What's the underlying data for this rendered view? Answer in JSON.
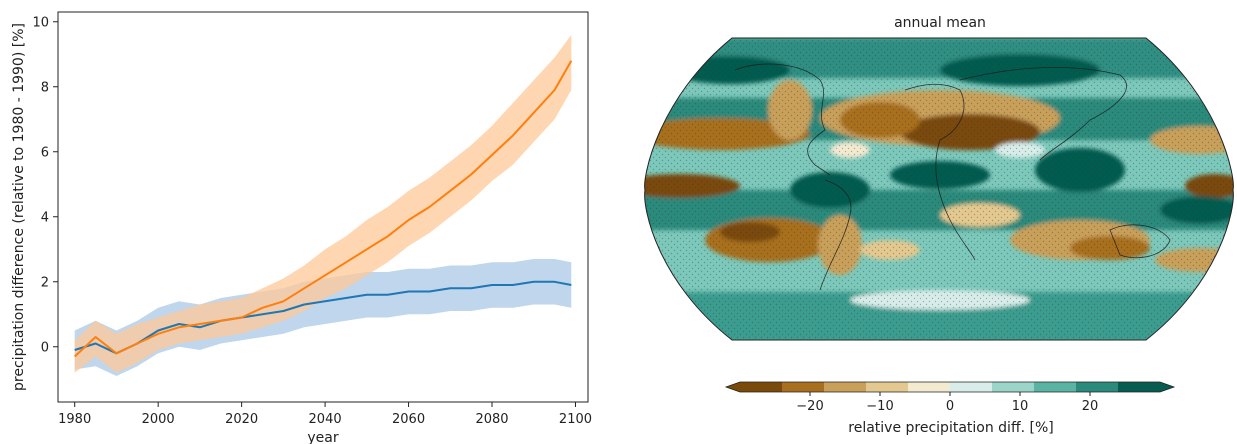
{
  "chart_data": [
    {
      "type": "line",
      "title": "",
      "xlabel": "year",
      "ylabel": "precipitation difference (relative to 1980 - 1990) [%]",
      "xlim": [
        1976,
        2103
      ],
      "ylim": [
        -1.7,
        10.3
      ],
      "xticks": [
        1980,
        2000,
        2020,
        2040,
        2060,
        2080,
        2100
      ],
      "yticks": [
        0,
        2,
        4,
        6,
        8,
        10
      ],
      "grid": false,
      "legend": "none",
      "series": [
        {
          "color": "#1f77b4",
          "band_color": "#a9c8e6",
          "x": [
            1980,
            1985,
            1990,
            1995,
            2000,
            2005,
            2010,
            2015,
            2020,
            2025,
            2030,
            2035,
            2040,
            2045,
            2050,
            2055,
            2060,
            2065,
            2070,
            2075,
            2080,
            2085,
            2090,
            2095,
            2099
          ],
          "values": [
            -0.1,
            0.1,
            -0.2,
            0.1,
            0.5,
            0.7,
            0.6,
            0.8,
            0.9,
            1.0,
            1.1,
            1.3,
            1.4,
            1.5,
            1.6,
            1.6,
            1.7,
            1.7,
            1.8,
            1.8,
            1.9,
            1.9,
            2.0,
            2.0,
            1.9
          ],
          "lower": [
            -0.7,
            -0.6,
            -0.9,
            -0.6,
            -0.2,
            0.0,
            -0.1,
            0.1,
            0.2,
            0.3,
            0.4,
            0.6,
            0.7,
            0.8,
            0.9,
            0.9,
            1.0,
            1.0,
            1.1,
            1.1,
            1.2,
            1.2,
            1.3,
            1.3,
            1.2
          ],
          "upper": [
            0.5,
            0.8,
            0.5,
            0.8,
            1.2,
            1.4,
            1.3,
            1.5,
            1.6,
            1.7,
            1.8,
            2.0,
            2.1,
            2.2,
            2.3,
            2.3,
            2.4,
            2.4,
            2.5,
            2.5,
            2.6,
            2.6,
            2.7,
            2.7,
            2.6
          ]
        },
        {
          "color": "#ff7f0e",
          "band_color": "#fdc898",
          "x": [
            1980,
            1985,
            1990,
            1995,
            2000,
            2005,
            2010,
            2015,
            2020,
            2025,
            2030,
            2035,
            2040,
            2045,
            2050,
            2055,
            2060,
            2065,
            2070,
            2075,
            2080,
            2085,
            2090,
            2095,
            2099
          ],
          "values": [
            -0.3,
            0.3,
            -0.2,
            0.1,
            0.4,
            0.6,
            0.7,
            0.8,
            0.9,
            1.2,
            1.4,
            1.8,
            2.2,
            2.6,
            3.0,
            3.4,
            3.9,
            4.3,
            4.8,
            5.3,
            5.9,
            6.5,
            7.2,
            7.9,
            8.8
          ],
          "lower": [
            -0.8,
            -0.3,
            -0.8,
            -0.5,
            -0.1,
            0.1,
            0.2,
            0.3,
            0.4,
            0.6,
            0.8,
            1.1,
            1.5,
            1.8,
            2.2,
            2.6,
            3.1,
            3.5,
            4.0,
            4.5,
            5.1,
            5.6,
            6.3,
            7.0,
            7.9
          ],
          "upper": [
            0.2,
            0.8,
            0.4,
            0.7,
            0.9,
            1.1,
            1.3,
            1.4,
            1.5,
            1.8,
            2.1,
            2.5,
            3.0,
            3.4,
            3.9,
            4.3,
            4.8,
            5.2,
            5.7,
            6.2,
            6.8,
            7.5,
            8.2,
            8.9,
            9.6
          ]
        }
      ]
    },
    {
      "type": "heatmap",
      "title": "annual mean",
      "colorbar": {
        "label": "relative precipitation diff. [%]",
        "ticks": [
          "−20",
          "−10",
          "0",
          "10",
          "20"
        ],
        "tick_values": [
          -20,
          -10,
          0,
          10,
          20
        ],
        "range": [
          -30,
          30
        ],
        "extend": "both",
        "colors": [
          "#7a4a0b",
          "#a8701e",
          "#c9a05a",
          "#e3c98f",
          "#f3ead0",
          "#d8ede9",
          "#9bd4c9",
          "#5bb3a4",
          "#2a8a7c",
          "#065c50"
        ]
      }
    }
  ]
}
